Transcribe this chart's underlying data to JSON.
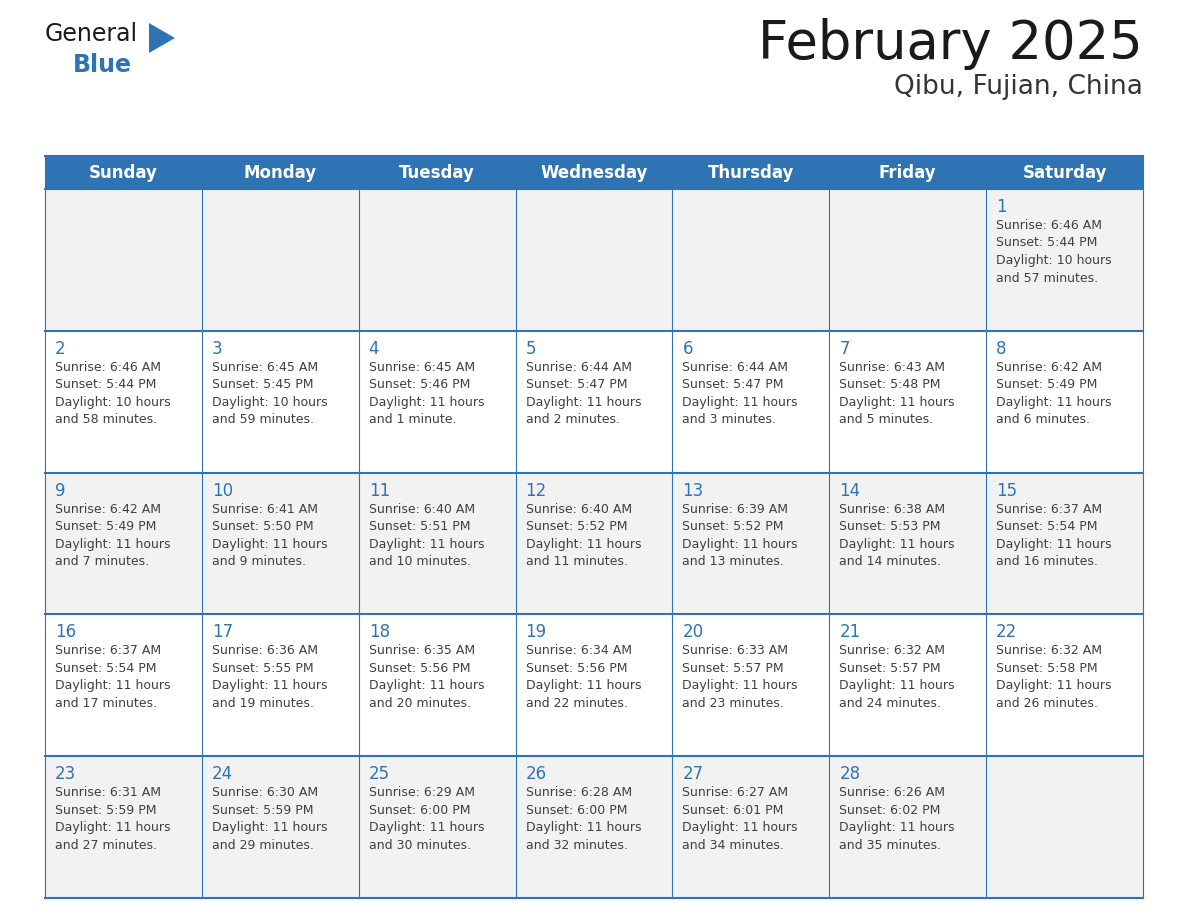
{
  "title": "February 2025",
  "subtitle": "Qibu, Fujian, China",
  "header_color": "#2E74B5",
  "header_text_color": "#FFFFFF",
  "cell_bg_even": "#F2F2F2",
  "cell_bg_odd": "#FFFFFF",
  "day_headers": [
    "Sunday",
    "Monday",
    "Tuesday",
    "Wednesday",
    "Thursday",
    "Friday",
    "Saturday"
  ],
  "title_color": "#1a1a1a",
  "subtitle_color": "#333333",
  "line_color": "#2E74B5",
  "day_number_color": "#2E74B5",
  "cell_text_color": "#404040",
  "logo_general_color": "#1a1a1a",
  "logo_blue_color": "#2E74B5",
  "logo_triangle_color": "#2E74B5",
  "calendar_data": [
    [
      null,
      null,
      null,
      null,
      null,
      null,
      {
        "day": 1,
        "sunrise": "6:46 AM",
        "sunset": "5:44 PM",
        "daylight": "10 hours and 57 minutes."
      }
    ],
    [
      {
        "day": 2,
        "sunrise": "6:46 AM",
        "sunset": "5:44 PM",
        "daylight": "10 hours and 58 minutes."
      },
      {
        "day": 3,
        "sunrise": "6:45 AM",
        "sunset": "5:45 PM",
        "daylight": "10 hours and 59 minutes."
      },
      {
        "day": 4,
        "sunrise": "6:45 AM",
        "sunset": "5:46 PM",
        "daylight": "11 hours and 1 minute."
      },
      {
        "day": 5,
        "sunrise": "6:44 AM",
        "sunset": "5:47 PM",
        "daylight": "11 hours and 2 minutes."
      },
      {
        "day": 6,
        "sunrise": "6:44 AM",
        "sunset": "5:47 PM",
        "daylight": "11 hours and 3 minutes."
      },
      {
        "day": 7,
        "sunrise": "6:43 AM",
        "sunset": "5:48 PM",
        "daylight": "11 hours and 5 minutes."
      },
      {
        "day": 8,
        "sunrise": "6:42 AM",
        "sunset": "5:49 PM",
        "daylight": "11 hours and 6 minutes."
      }
    ],
    [
      {
        "day": 9,
        "sunrise": "6:42 AM",
        "sunset": "5:49 PM",
        "daylight": "11 hours and 7 minutes."
      },
      {
        "day": 10,
        "sunrise": "6:41 AM",
        "sunset": "5:50 PM",
        "daylight": "11 hours and 9 minutes."
      },
      {
        "day": 11,
        "sunrise": "6:40 AM",
        "sunset": "5:51 PM",
        "daylight": "11 hours and 10 minutes."
      },
      {
        "day": 12,
        "sunrise": "6:40 AM",
        "sunset": "5:52 PM",
        "daylight": "11 hours and 11 minutes."
      },
      {
        "day": 13,
        "sunrise": "6:39 AM",
        "sunset": "5:52 PM",
        "daylight": "11 hours and 13 minutes."
      },
      {
        "day": 14,
        "sunrise": "6:38 AM",
        "sunset": "5:53 PM",
        "daylight": "11 hours and 14 minutes."
      },
      {
        "day": 15,
        "sunrise": "6:37 AM",
        "sunset": "5:54 PM",
        "daylight": "11 hours and 16 minutes."
      }
    ],
    [
      {
        "day": 16,
        "sunrise": "6:37 AM",
        "sunset": "5:54 PM",
        "daylight": "11 hours and 17 minutes."
      },
      {
        "day": 17,
        "sunrise": "6:36 AM",
        "sunset": "5:55 PM",
        "daylight": "11 hours and 19 minutes."
      },
      {
        "day": 18,
        "sunrise": "6:35 AM",
        "sunset": "5:56 PM",
        "daylight": "11 hours and 20 minutes."
      },
      {
        "day": 19,
        "sunrise": "6:34 AM",
        "sunset": "5:56 PM",
        "daylight": "11 hours and 22 minutes."
      },
      {
        "day": 20,
        "sunrise": "6:33 AM",
        "sunset": "5:57 PM",
        "daylight": "11 hours and 23 minutes."
      },
      {
        "day": 21,
        "sunrise": "6:32 AM",
        "sunset": "5:57 PM",
        "daylight": "11 hours and 24 minutes."
      },
      {
        "day": 22,
        "sunrise": "6:32 AM",
        "sunset": "5:58 PM",
        "daylight": "11 hours and 26 minutes."
      }
    ],
    [
      {
        "day": 23,
        "sunrise": "6:31 AM",
        "sunset": "5:59 PM",
        "daylight": "11 hours and 27 minutes."
      },
      {
        "day": 24,
        "sunrise": "6:30 AM",
        "sunset": "5:59 PM",
        "daylight": "11 hours and 29 minutes."
      },
      {
        "day": 25,
        "sunrise": "6:29 AM",
        "sunset": "6:00 PM",
        "daylight": "11 hours and 30 minutes."
      },
      {
        "day": 26,
        "sunrise": "6:28 AM",
        "sunset": "6:00 PM",
        "daylight": "11 hours and 32 minutes."
      },
      {
        "day": 27,
        "sunrise": "6:27 AM",
        "sunset": "6:01 PM",
        "daylight": "11 hours and 34 minutes."
      },
      {
        "day": 28,
        "sunrise": "6:26 AM",
        "sunset": "6:02 PM",
        "daylight": "11 hours and 35 minutes."
      },
      null
    ]
  ]
}
